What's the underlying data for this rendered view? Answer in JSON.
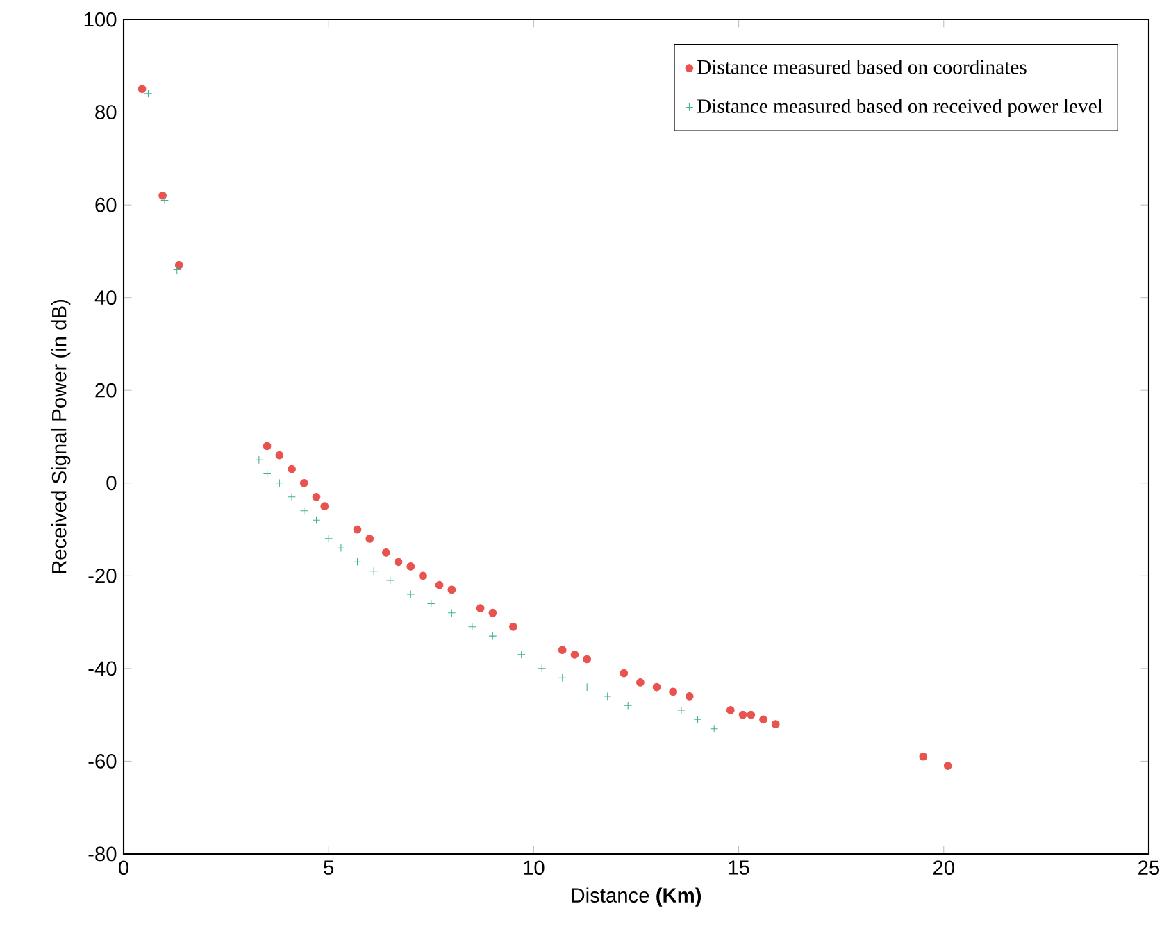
{
  "chart_data": {
    "type": "scatter",
    "xlabel": "Distance **(Km)**",
    "ylabel": "Received Signal Power (in dB)",
    "xlim": [
      0,
      25
    ],
    "ylim": [
      -80,
      100
    ],
    "xticks": [
      0,
      5,
      10,
      15,
      20,
      25
    ],
    "yticks": [
      -80,
      -60,
      -40,
      -20,
      0,
      20,
      40,
      60,
      80,
      100
    ],
    "legend": "top right",
    "series": [
      {
        "name": "Distance measured based on coordinates",
        "color": "#e8534f",
        "marker": "circle",
        "x": [
          0.45,
          0.95,
          1.35,
          3.5,
          3.8,
          4.1,
          4.4,
          4.7,
          4.9,
          5.7,
          6.0,
          6.4,
          6.7,
          7.0,
          7.3,
          7.7,
          8.0,
          8.7,
          9.0,
          9.5,
          10.7,
          11.0,
          11.3,
          12.2,
          12.6,
          13.0,
          13.4,
          13.8,
          14.8,
          15.1,
          15.3,
          15.6,
          15.9,
          19.5,
          20.1
        ],
        "values": [
          85,
          62,
          47,
          8,
          6,
          3,
          0,
          -3,
          -5,
          -10,
          -12,
          -15,
          -17,
          -18,
          -20,
          -22,
          -23,
          -27,
          -28,
          -31,
          -36,
          -37,
          -38,
          -41,
          -43,
          -44,
          -45,
          -46,
          -49,
          -50,
          -50,
          -51,
          -52,
          -59,
          -61
        ]
      },
      {
        "name": "Distance measured based on received power level",
        "color": "#3fb48c",
        "marker": "cross",
        "x": [
          0.6,
          1.0,
          1.3,
          3.3,
          3.5,
          3.8,
          4.1,
          4.4,
          4.7,
          5.0,
          5.3,
          5.7,
          6.1,
          6.5,
          7.0,
          7.5,
          8.0,
          8.5,
          9.0,
          9.7,
          10.2,
          10.7,
          11.3,
          11.8,
          12.3,
          13.6,
          14.0,
          14.4
        ],
        "values": [
          84,
          61,
          46,
          5,
          2,
          0,
          -3,
          -6,
          -8,
          -12,
          -14,
          -17,
          -19,
          -21,
          -24,
          -26,
          -28,
          -31,
          -33,
          -37,
          -40,
          -42,
          -44,
          -46,
          -48,
          -49,
          -51,
          -53
        ]
      }
    ]
  }
}
